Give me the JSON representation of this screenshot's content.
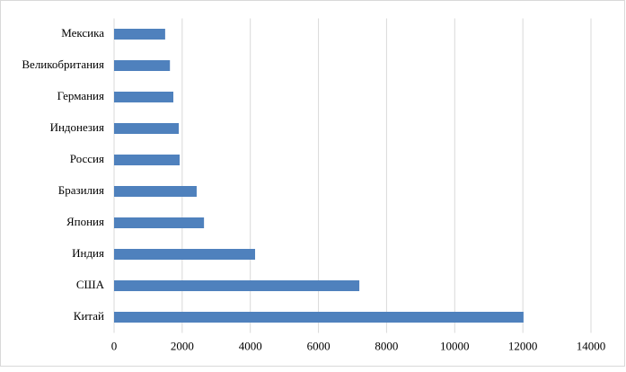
{
  "chart_data": {
    "type": "bar",
    "orientation": "horizontal",
    "categories": [
      "Мексика",
      "Великобритания",
      "Германия",
      "Индонезия",
      "Россия",
      "Бразилия",
      "Япония",
      "Индия",
      "США",
      "Китай"
    ],
    "values": [
      1500,
      1640,
      1740,
      1900,
      1925,
      2425,
      2640,
      4140,
      7200,
      12020
    ],
    "color": "#4f81bd",
    "xlim": [
      0,
      14000
    ],
    "xticks": [
      0,
      2000,
      4000,
      6000,
      8000,
      10000,
      12000,
      14000
    ],
    "grid": true
  }
}
